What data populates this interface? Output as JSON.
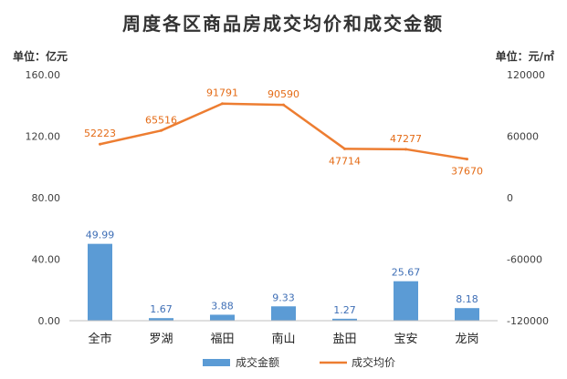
{
  "chart_data": {
    "type": "bar",
    "title": "周度各区商品房成交均价和成交金额",
    "left_unit": "单位：亿元",
    "right_unit": "单位：元/㎡",
    "categories": [
      "全市",
      "罗湖",
      "福田",
      "南山",
      "盐田",
      "宝安",
      "龙岗"
    ],
    "series": [
      {
        "name": "成交金额",
        "type": "bar",
        "axis": "left",
        "color": "#5b9bd5",
        "values": [
          49.99,
          1.67,
          3.88,
          9.33,
          1.27,
          25.67,
          8.18
        ],
        "labels": [
          "49.99",
          "1.67",
          "3.88",
          "9.33",
          "1.27",
          "25.67",
          "8.18"
        ]
      },
      {
        "name": "成交均价",
        "type": "line",
        "axis": "right",
        "color": "#ed7d31",
        "values": [
          52223,
          65516,
          91791,
          90590,
          47714,
          47277,
          37670
        ],
        "labels": [
          "52223",
          "65516",
          "91791",
          "90590",
          "47714",
          "47277",
          "37670"
        ]
      }
    ],
    "y_left": {
      "ylim": [
        0,
        160
      ],
      "ticks": [
        0,
        40,
        80,
        120,
        160
      ],
      "tick_labels": [
        "0.00",
        "40.00",
        "80.00",
        "120.00",
        "160.00"
      ]
    },
    "y_right": {
      "ylim": [
        -120000,
        120000
      ],
      "ticks": [
        -120000,
        -60000,
        0,
        60000,
        120000
      ],
      "tick_labels": [
        "-120000",
        "-60000",
        "0",
        "60000",
        "120000"
      ]
    },
    "grid": false,
    "legend_position": "bottom"
  }
}
